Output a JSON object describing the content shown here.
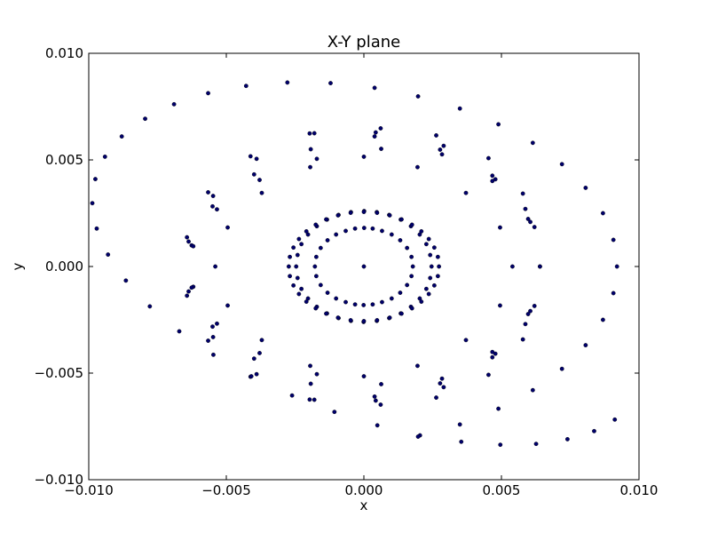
{
  "chart_data": {
    "type": "scatter",
    "title": "X-Y plane",
    "xlabel": "x",
    "ylabel": "y",
    "xlim": [
      -0.01,
      0.01
    ],
    "ylim": [
      -0.01,
      0.01
    ],
    "grid": false,
    "legend": "none",
    "marker_color": "#00006b",
    "x_ticks": [
      -0.01,
      -0.005,
      0.0,
      0.005,
      0.01
    ],
    "x_tick_labels": [
      "−0.010",
      "−0.005",
      "0.000",
      "0.005",
      "0.010"
    ],
    "y_ticks": [
      -0.01,
      -0.005,
      0.0,
      0.005,
      0.01
    ],
    "y_tick_labels": [
      "−0.010",
      "−0.005",
      "0.000",
      "0.005",
      "0.010"
    ],
    "points": {
      "x": [
        0,
        0.00178,
        0.00173,
        0.00157,
        0.00132,
        0.00101,
        0.00066,
        0.00032,
        1e-05,
        -0.00032,
        -0.00066,
        -0.00101,
        -0.00132,
        -0.00157,
        -0.00173,
        -0.00178,
        -0.00173,
        -0.00157,
        -0.00132,
        -0.00101,
        -0.00066,
        -0.00032,
        -1e-05,
        0.00032,
        0.00066,
        0.00101,
        0.00132,
        0.00157,
        0.00173,
        0.00246,
        0.00241,
        0.00227,
        0.00203,
        0.00171,
        0.00134,
        0.00092,
        0.00047,
        1e-05,
        -0.00047,
        -0.00092,
        -0.00134,
        -0.00171,
        -0.00203,
        -0.00227,
        -0.00241,
        -0.00246,
        -0.00241,
        -0.00227,
        -0.00203,
        -0.00171,
        -0.00134,
        -0.00092,
        -0.00047,
        -1e-05,
        0.00047,
        0.00092,
        0.00134,
        0.00171,
        0.00203,
        0.00227,
        0.00241,
        0.00273,
        0.00269,
        0.00256,
        0.00236,
        0.00209,
        0.00175,
        0.00137,
        0.00094,
        0.00048,
        0,
        -0.00048,
        -0.00094,
        -0.00137,
        -0.00175,
        -0.00209,
        -0.00236,
        -0.00256,
        -0.00269,
        -0.00273,
        -0.00269,
        -0.00256,
        -0.00236,
        -0.00209,
        -0.00175,
        -0.00137,
        -0.00094,
        -0.00048,
        0,
        0.00048,
        0.00094,
        0.00137,
        0.00175,
        0.00209,
        0.00236,
        0.00256,
        0.00269,
        0.0054,
        0.00495,
        0.00371,
        0.00195,
        -0.0,
        -0.00195,
        -0.00371,
        -0.00495,
        -0.0054,
        -0.00495,
        -0.00371,
        -0.00195,
        0.0,
        0.00195,
        0.00371,
        0.00495,
        0.0062,
        0.00578,
        0.00453,
        0.00263,
        0.00039,
        -0.00193,
        -0.00399,
        -0.0055,
        -0.00626,
        -0.0062,
        -0.00534,
        -0.00379,
        -0.00171,
        0.00063,
        0.00284,
        0.00467,
        0.00587,
        0.0062,
        0.00578,
        0.00453,
        0.00263,
        0.00039,
        -0.00193,
        -0.00399,
        -0.0055,
        -0.00626,
        -0.0062,
        -0.00534,
        -0.00379,
        -0.00171,
        0.00063,
        0.00284,
        0.00467,
        0.00587,
        0.0064,
        0.00597,
        0.00467,
        0.00277,
        0.00043,
        -0.00197,
        -0.00412,
        -0.00566,
        -0.00643,
        -0.00637,
        -0.00548,
        -0.0039,
        -0.0018,
        0.00061,
        0.0029,
        0.00478,
        0.00605,
        0.0064,
        0.00597,
        0.00467,
        0.00277,
        0.00043,
        -0.00197,
        -0.00412,
        -0.00566,
        -0.00643,
        -0.00637,
        -0.00548,
        -0.0039,
        -0.0018,
        0.00061,
        0.0029,
        0.00478,
        0.00605,
        0.0092,
        0.00907,
        0.00869,
        0.00806,
        0.0072,
        0.00614,
        0.00489,
        0.00349,
        0.00197,
        0.00039,
        -0.00121,
        -0.00278,
        -0.00428,
        -0.00566,
        -0.0069,
        -0.00795,
        -0.0088,
        -0.00941,
        -0.00976,
        -0.00987,
        -0.00971,
        -0.0093,
        -0.00865,
        -0.00778,
        -0.00671,
        -0.00547,
        -0.00409,
        -0.00261,
        -0.00107,
        0.00049,
        0.00204,
        0.00354,
        0.00496,
        0.00626,
        0.0074,
        0.00837,
        0.00912,
        0.00907,
        0.00869,
        0.00806,
        0.0072,
        0.00614,
        0.00489,
        0.00349,
        0.00197
      ],
      "y": [
        0,
        0,
        0.00045,
        0.00087,
        0.00123,
        0.0015,
        0.00167,
        0.00178,
        0.00181,
        0.00178,
        0.00167,
        0.0015,
        0.00123,
        0.00087,
        0.00045,
        0,
        -0.00045,
        -0.00087,
        -0.00123,
        -0.0015,
        -0.00167,
        -0.00178,
        -0.00181,
        -0.00178,
        -0.00167,
        -0.0015,
        -0.00123,
        -0.00087,
        -0.00045,
        0,
        0.00054,
        0.00105,
        0.0015,
        0.00189,
        0.0022,
        0.00242,
        0.00255,
        0.0026,
        0.00255,
        0.00242,
        0.0022,
        0.00189,
        0.0015,
        0.00105,
        0.00054,
        0,
        -0.00054,
        -0.00105,
        -0.0015,
        -0.00189,
        -0.0022,
        -0.00242,
        -0.00255,
        -0.0026,
        -0.00255,
        -0.00242,
        -0.0022,
        -0.00189,
        -0.0015,
        -0.00105,
        -0.00054,
        0,
        0.00045,
        0.00089,
        0.00129,
        0.00165,
        0.00196,
        0.00221,
        0.0024,
        0.00252,
        0.00256,
        0.00252,
        0.0024,
        0.00221,
        0.00196,
        0.00165,
        0.00129,
        0.00089,
        0.00045,
        0,
        -0.00045,
        -0.00089,
        -0.00129,
        -0.00165,
        -0.00196,
        -0.00221,
        -0.0024,
        -0.00252,
        -0.00256,
        -0.00252,
        -0.0024,
        -0.00221,
        -0.00196,
        -0.00165,
        -0.00129,
        -0.00089,
        -0.00045,
        0,
        0.00183,
        0.00345,
        0.00466,
        0.00515,
        0.00466,
        0.00345,
        0.00183,
        0,
        -0.00183,
        -0.00345,
        -0.00466,
        -0.00515,
        -0.00466,
        -0.00345,
        -0.00183,
        0.00185,
        0.00342,
        0.00508,
        0.00615,
        0.0061,
        0.0055,
        0.00432,
        0.00282,
        0.00099,
        -0.00095,
        -0.00268,
        -0.00406,
        -0.00505,
        -0.00552,
        -0.00526,
        -0.00426,
        -0.0027,
        -0.00185,
        -0.00342,
        -0.00508,
        -0.00615,
        -0.0061,
        -0.0055,
        -0.00432,
        -0.00282,
        -0.00099,
        0.00095,
        0.00268,
        0.00406,
        0.00505,
        0.00552,
        0.00526,
        0.00426,
        0.0027,
        0,
        0.00223,
        0.00401,
        0.00548,
        0.00629,
        0.00624,
        0.00517,
        0.00348,
        0.00137,
        -0.00117,
        -0.00331,
        -0.00505,
        -0.00625,
        -0.00648,
        -0.00566,
        -0.00409,
        -0.00209,
        0,
        -0.00223,
        -0.00401,
        -0.00548,
        -0.00629,
        -0.00624,
        -0.00517,
        -0.00348,
        -0.00137,
        0.00117,
        0.00331,
        0.00505,
        0.00625,
        0.00648,
        0.00566,
        0.00409,
        0.00209,
        0,
        0.00125,
        0.0025,
        0.00369,
        0.0048,
        0.0058,
        0.00667,
        0.00741,
        0.00798,
        0.00838,
        0.0086,
        0.00863,
        0.00847,
        0.00813,
        0.00761,
        0.00693,
        0.0061,
        0.00515,
        0.0041,
        0.00297,
        0.00178,
        0.00056,
        -0.00066,
        -0.00187,
        -0.00304,
        -0.00414,
        -0.00515,
        -0.00605,
        -0.00682,
        -0.00745,
        -0.00792,
        -0.00822,
        -0.00836,
        -0.00832,
        -0.0081,
        -0.00772,
        -0.00718,
        -0.00125,
        -0.0025,
        -0.00369,
        -0.0048,
        -0.0058,
        -0.00667,
        -0.00741,
        -0.00798
      ]
    }
  }
}
